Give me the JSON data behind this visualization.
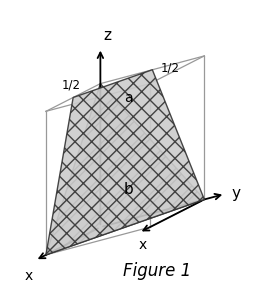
{
  "figure_label": "Figure 1",
  "background_color": "#ffffff",
  "line_color": "#999999",
  "dark_line_color": "#333333",
  "plane_a_label": "a",
  "plane_b_label": "b",
  "half_label": "1/2",
  "axis_z_label": "z",
  "axis_y_label": "y",
  "axis_x_label": "x",
  "figsize": [
    2.75,
    2.89
  ],
  "dpi": 100,
  "ox": 100,
  "oy": 228,
  "ux": [
    -55,
    28
  ],
  "uy": [
    105,
    -28
  ],
  "uz": [
    0,
    -145
  ]
}
